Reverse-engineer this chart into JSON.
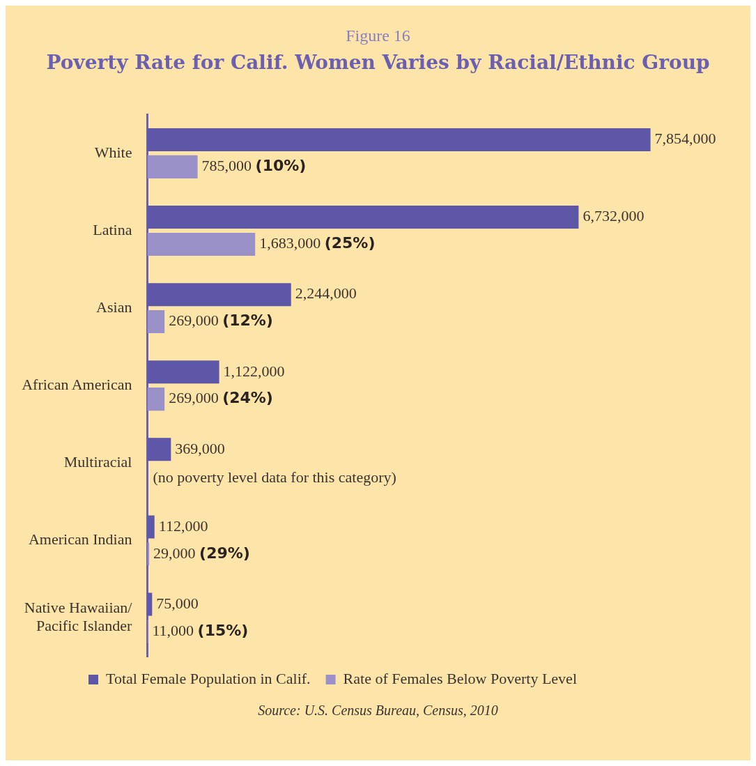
{
  "chart_data": {
    "type": "bar",
    "orientation": "horizontal",
    "subtitle": "Figure 16",
    "title": "Poverty Rate for Calif. Women Varies by Racial/Ethnic Group",
    "categories": [
      "White",
      "Latina",
      "Asian",
      "African American",
      "Multiracial",
      "American Indian",
      "Native Hawaiian/ Pacific Islander"
    ],
    "series": [
      {
        "name": "Total Female Population in Calif.",
        "color": "#5e56a6",
        "values": [
          7854000,
          6732000,
          2244000,
          1122000,
          369000,
          112000,
          75000
        ],
        "value_labels": [
          "7,854,000",
          "6,732,000",
          "2,244,000",
          "1,122,000",
          "369,000",
          "112,000",
          "75,000"
        ]
      },
      {
        "name": "Rate of Females Below Poverty Level",
        "color": "#9a91c9",
        "values": [
          785000,
          1683000,
          269000,
          269000,
          null,
          29000,
          11000
        ],
        "value_labels": [
          "785,000 (10%)",
          "1,683,000 (25%)",
          "269,000 (12%)",
          "269,000 (24%)",
          null,
          "29,000 (29%)",
          "11,000 (15%)"
        ]
      }
    ],
    "annotations": [
      "(no poverty level data for this category)",
      "Source: U.S. Census Bureau, Census, 2010"
    ],
    "legend": "bottom",
    "grid": false
  }
}
